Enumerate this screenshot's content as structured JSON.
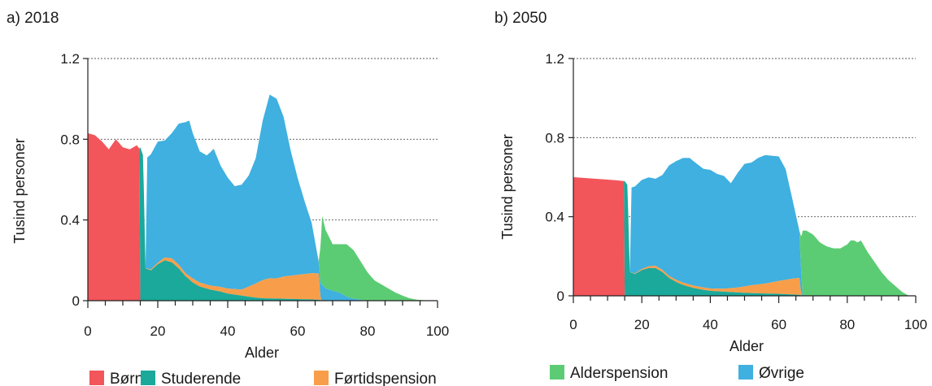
{
  "chart_data": [
    {
      "type": "area",
      "title": "a) 2018",
      "xlabel": "Alder",
      "ylabel": "Tusind personer",
      "xlim": [
        0,
        100
      ],
      "ylim": [
        0,
        1.2
      ],
      "x_ticks": [
        "0",
        "20",
        "40",
        "60",
        "80",
        "100"
      ],
      "y_ticks": [
        "0",
        "0.4",
        "0.8",
        "1.2"
      ],
      "grid": "horizontal dashed",
      "stacked": true,
      "series": [
        {
          "name": "Børn",
          "color": "#f2555a",
          "points": [
            [
              0,
              0.83
            ],
            [
              2,
              0.82
            ],
            [
              4,
              0.79
            ],
            [
              6,
              0.75
            ],
            [
              8,
              0.8
            ],
            [
              10,
              0.76
            ],
            [
              12,
              0.75
            ],
            [
              14,
              0.77
            ],
            [
              14.9,
              0.75
            ],
            [
              15,
              0
            ],
            [
              100,
              0
            ]
          ]
        },
        {
          "name": "Studerende",
          "color": "#1aa99b",
          "points": [
            [
              0,
              0
            ],
            [
              14.9,
              0
            ],
            [
              15,
              0.76
            ],
            [
              15.8,
              0.72
            ],
            [
              16.5,
              0.16
            ],
            [
              18,
              0.15
            ],
            [
              20,
              0.18
            ],
            [
              22,
              0.2
            ],
            [
              24,
              0.19
            ],
            [
              26,
              0.16
            ],
            [
              28,
              0.12
            ],
            [
              30,
              0.09
            ],
            [
              32,
              0.07
            ],
            [
              35,
              0.055
            ],
            [
              38,
              0.045
            ],
            [
              40,
              0.035
            ],
            [
              42,
              0.03
            ],
            [
              44,
              0.025
            ],
            [
              46,
              0.02
            ],
            [
              48,
              0.015
            ],
            [
              50,
              0.012
            ],
            [
              55,
              0.01
            ],
            [
              60,
              0.008
            ],
            [
              66,
              0.005
            ],
            [
              67,
              0
            ],
            [
              100,
              0
            ]
          ]
        },
        {
          "name": "Førtidspension",
          "color": "#f89e4a",
          "points": [
            [
              0,
              0
            ],
            [
              15,
              0
            ],
            [
              16,
              0
            ],
            [
              17,
              0.003
            ],
            [
              20,
              0.008
            ],
            [
              24,
              0.02
            ],
            [
              28,
              0.015
            ],
            [
              30,
              0.02
            ],
            [
              35,
              0.02
            ],
            [
              40,
              0.025
            ],
            [
              44,
              0.03
            ],
            [
              46,
              0.05
            ],
            [
              48,
              0.07
            ],
            [
              50,
              0.09
            ],
            [
              52,
              0.1
            ],
            [
              54,
              0.1
            ],
            [
              56,
              0.11
            ],
            [
              60,
              0.12
            ],
            [
              64,
              0.13
            ],
            [
              66,
              0.13
            ],
            [
              66.6,
              0
            ],
            [
              100,
              0
            ]
          ]
        },
        {
          "name": "Øvrige",
          "color": "#3fb0e0",
          "points": [
            [
              0,
              0
            ],
            [
              16.5,
              0
            ],
            [
              17,
              0.55
            ],
            [
              18,
              0.57
            ],
            [
              20,
              0.6
            ],
            [
              22,
              0.58
            ],
            [
              24,
              0.62
            ],
            [
              26,
              0.7
            ],
            [
              28,
              0.75
            ],
            [
              29,
              0.77
            ],
            [
              30,
              0.72
            ],
            [
              32,
              0.65
            ],
            [
              34,
              0.64
            ],
            [
              36,
              0.68
            ],
            [
              38,
              0.6
            ],
            [
              40,
              0.55
            ],
            [
              42,
              0.51
            ],
            [
              44,
              0.52
            ],
            [
              46,
              0.55
            ],
            [
              48,
              0.62
            ],
            [
              50,
              0.79
            ],
            [
              52,
              0.91
            ],
            [
              54,
              0.89
            ],
            [
              56,
              0.79
            ],
            [
              58,
              0.62
            ],
            [
              60,
              0.48
            ],
            [
              62,
              0.36
            ],
            [
              64,
              0.25
            ],
            [
              66,
              0.06
            ],
            [
              67,
              0.08
            ],
            [
              68,
              0.06
            ],
            [
              70,
              0.05
            ],
            [
              72,
              0.04
            ],
            [
              74,
              0.02
            ],
            [
              76,
              0.01
            ],
            [
              78,
              0.005
            ],
            [
              80,
              0
            ],
            [
              100,
              0
            ]
          ]
        },
        {
          "name": "Alderspension",
          "color": "#5ccc74",
          "points": [
            [
              0,
              0
            ],
            [
              66,
              0
            ],
            [
              67,
              0.34
            ],
            [
              68,
              0.29
            ],
            [
              70,
              0.23
            ],
            [
              72,
              0.24
            ],
            [
              74,
              0.26
            ],
            [
              76,
              0.24
            ],
            [
              78,
              0.19
            ],
            [
              80,
              0.14
            ],
            [
              82,
              0.1
            ],
            [
              84,
              0.08
            ],
            [
              86,
              0.06
            ],
            [
              88,
              0.04
            ],
            [
              90,
              0.025
            ],
            [
              92,
              0.012
            ],
            [
              94,
              0.005
            ],
            [
              96,
              0.002
            ],
            [
              98,
              0
            ],
            [
              100,
              0
            ]
          ]
        }
      ]
    },
    {
      "type": "area",
      "title": "b) 2050",
      "xlabel": "Alder",
      "ylabel": "Tusind personer",
      "xlim": [
        0,
        100
      ],
      "ylim": [
        0,
        1.2
      ],
      "x_ticks": [
        "0",
        "20",
        "40",
        "60",
        "80",
        "100"
      ],
      "y_ticks": [
        "0",
        "0.4",
        "0.8",
        "1.2"
      ],
      "grid": "horizontal dashed",
      "stacked": true,
      "series": [
        {
          "name": "Børn",
          "color": "#f2555a",
          "points": [
            [
              0,
              0.6
            ],
            [
              4,
              0.595
            ],
            [
              8,
              0.59
            ],
            [
              12,
              0.585
            ],
            [
              14.9,
              0.58
            ],
            [
              15,
              0
            ],
            [
              100,
              0
            ]
          ]
        },
        {
          "name": "Studerende",
          "color": "#1aa99b",
          "points": [
            [
              0,
              0
            ],
            [
              14.9,
              0
            ],
            [
              15,
              0.58
            ],
            [
              15.8,
              0.56
            ],
            [
              16.5,
              0.12
            ],
            [
              18,
              0.11
            ],
            [
              20,
              0.13
            ],
            [
              22,
              0.14
            ],
            [
              24,
              0.14
            ],
            [
              26,
              0.12
            ],
            [
              28,
              0.09
            ],
            [
              30,
              0.07
            ],
            [
              32,
              0.055
            ],
            [
              35,
              0.04
            ],
            [
              38,
              0.03
            ],
            [
              40,
              0.025
            ],
            [
              45,
              0.02
            ],
            [
              50,
              0.015
            ],
            [
              55,
              0.012
            ],
            [
              60,
              0.01
            ],
            [
              66,
              0.005
            ],
            [
              67,
              0
            ],
            [
              100,
              0
            ]
          ]
        },
        {
          "name": "Førtidspension",
          "color": "#f89e4a",
          "points": [
            [
              0,
              0
            ],
            [
              16,
              0
            ],
            [
              18,
              0.003
            ],
            [
              20,
              0.006
            ],
            [
              24,
              0.012
            ],
            [
              28,
              0.01
            ],
            [
              32,
              0.012
            ],
            [
              36,
              0.012
            ],
            [
              40,
              0.012
            ],
            [
              44,
              0.015
            ],
            [
              48,
              0.025
            ],
            [
              52,
              0.04
            ],
            [
              56,
              0.05
            ],
            [
              60,
              0.065
            ],
            [
              64,
              0.08
            ],
            [
              66,
              0.085
            ],
            [
              66.6,
              0
            ],
            [
              100,
              0
            ]
          ]
        },
        {
          "name": "Øvrige",
          "color": "#3fb0e0",
          "points": [
            [
              0,
              0
            ],
            [
              16.5,
              0
            ],
            [
              17,
              0.43
            ],
            [
              18,
              0.44
            ],
            [
              20,
              0.45
            ],
            [
              22,
              0.45
            ],
            [
              24,
              0.44
            ],
            [
              26,
              0.48
            ],
            [
              28,
              0.56
            ],
            [
              30,
              0.6
            ],
            [
              32,
              0.63
            ],
            [
              34,
              0.64
            ],
            [
              36,
              0.62
            ],
            [
              38,
              0.6
            ],
            [
              40,
              0.6
            ],
            [
              42,
              0.58
            ],
            [
              44,
              0.57
            ],
            [
              46,
              0.53
            ],
            [
              48,
              0.58
            ],
            [
              50,
              0.62
            ],
            [
              52,
              0.62
            ],
            [
              54,
              0.64
            ],
            [
              56,
              0.65
            ],
            [
              58,
              0.64
            ],
            [
              60,
              0.63
            ],
            [
              62,
              0.56
            ],
            [
              64,
              0.4
            ],
            [
              66,
              0.24
            ],
            [
              67,
              0
            ],
            [
              100,
              0
            ]
          ]
        },
        {
          "name": "Alderspension",
          "color": "#5ccc74",
          "points": [
            [
              0,
              0
            ],
            [
              66,
              0
            ],
            [
              67,
              0.33
            ],
            [
              68,
              0.33
            ],
            [
              70,
              0.31
            ],
            [
              72,
              0.27
            ],
            [
              74,
              0.25
            ],
            [
              76,
              0.24
            ],
            [
              78,
              0.24
            ],
            [
              80,
              0.26
            ],
            [
              81,
              0.28
            ],
            [
              82,
              0.28
            ],
            [
              83,
              0.27
            ],
            [
              84,
              0.28
            ],
            [
              86,
              0.22
            ],
            [
              88,
              0.17
            ],
            [
              90,
              0.12
            ],
            [
              92,
              0.08
            ],
            [
              94,
              0.05
            ],
            [
              96,
              0.02
            ],
            [
              97,
              0.01
            ],
            [
              98,
              0
            ],
            [
              100,
              0
            ]
          ]
        }
      ]
    }
  ],
  "legend": [
    {
      "label": "Børn",
      "color": "#f2555a"
    },
    {
      "label": "Studerende",
      "color": "#1aa99b"
    },
    {
      "label": "Førtidspension",
      "color": "#f89e4a"
    },
    {
      "label": "Alderspension",
      "color": "#5ccc74"
    },
    {
      "label": "Øvrige",
      "color": "#3fb0e0"
    }
  ]
}
